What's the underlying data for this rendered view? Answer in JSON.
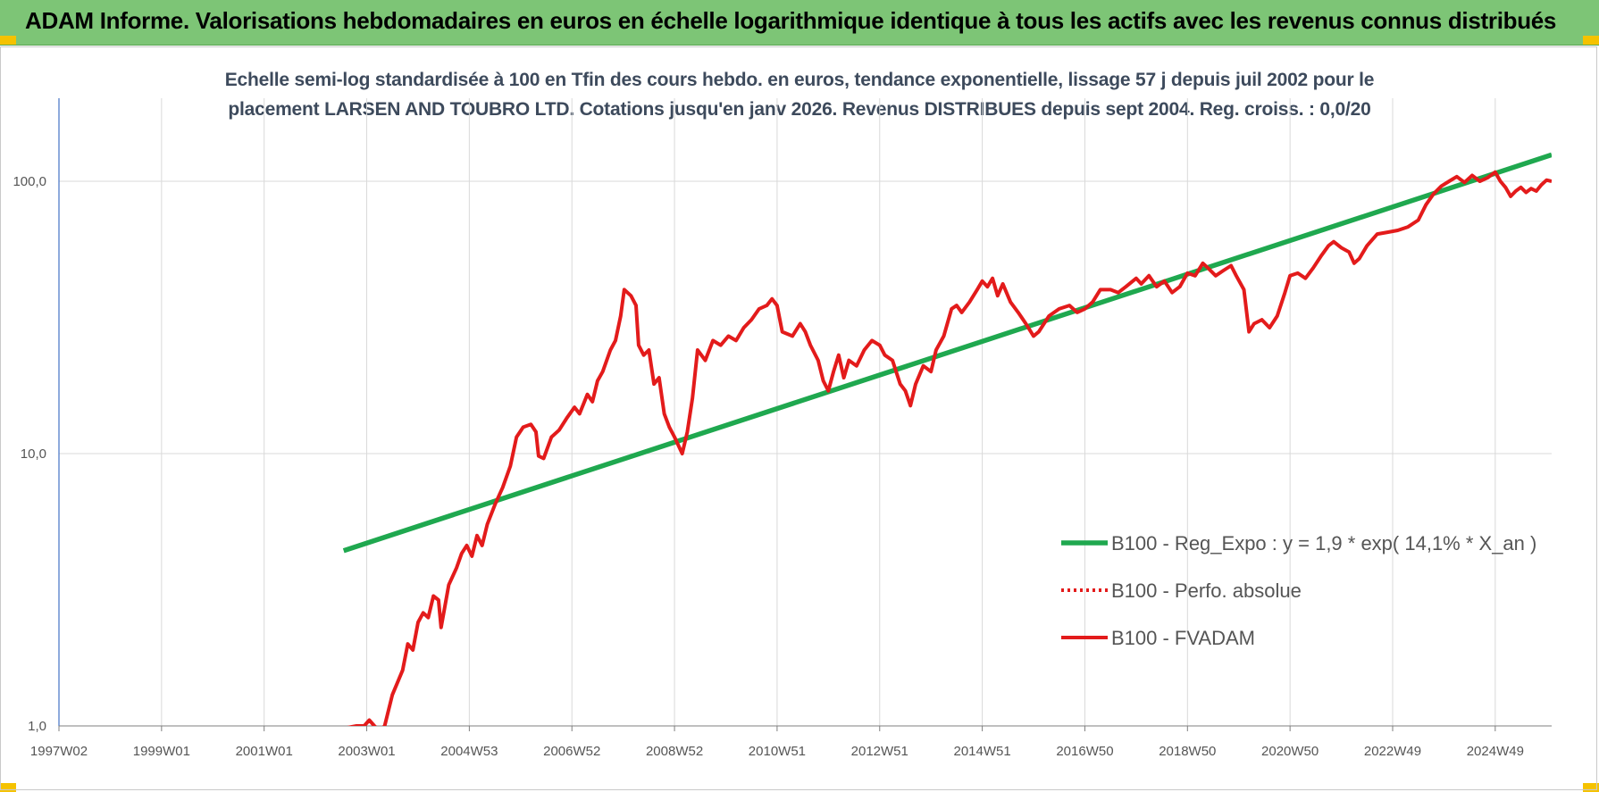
{
  "header": {
    "title": "ADAM Informe. Valorisations hebdomadaires en euros en échelle logarithmique identique à tous les actifs avec les revenus connus distribués",
    "accent_color": "#7dc576"
  },
  "chart_data": {
    "type": "line",
    "title_line1": "Echelle semi-log standardisée à 100 en Tfin des cours hebdo. en euros, tendance exponentielle, lissage 57 j depuis juil 2002 pour le",
    "title_line2": "placement LARSEN AND TOUBRO LTD. Cotations jusqu'en janv 2026. Revenus DISTRIBUES depuis sept 2004. Reg. croiss. : 0,0/20",
    "y_scale": "log",
    "ylim": [
      1,
      200
    ],
    "y_ticks": [
      {
        "value": 1,
        "label": "1,0"
      },
      {
        "value": 10,
        "label": "10,0"
      },
      {
        "value": 100,
        "label": "100,0"
      }
    ],
    "x_range": [
      1997.0,
      2026.1
    ],
    "x_ticks": [
      {
        "year": 1997.0,
        "label": "1997W02"
      },
      {
        "year": 1999.0,
        "label": "1999W01"
      },
      {
        "year": 2001.0,
        "label": "2001W01"
      },
      {
        "year": 2003.0,
        "label": "2003W01"
      },
      {
        "year": 2005.0,
        "label": "2004W53"
      },
      {
        "year": 2007.0,
        "label": "2006W52"
      },
      {
        "year": 2009.0,
        "label": "2008W52"
      },
      {
        "year": 2011.0,
        "label": "2010W51"
      },
      {
        "year": 2013.0,
        "label": "2012W51"
      },
      {
        "year": 2015.0,
        "label": "2014W51"
      },
      {
        "year": 2017.0,
        "label": "2016W50"
      },
      {
        "year": 2019.0,
        "label": "2018W50"
      },
      {
        "year": 2021.0,
        "label": "2020W50"
      },
      {
        "year": 2023.0,
        "label": "2022W49"
      },
      {
        "year": 2025.0,
        "label": "2024W49"
      }
    ],
    "grid": true,
    "legend_position": "bottom-right",
    "series": [
      {
        "name": "B100 - Reg_Expo : y = 1,9 * exp( 14,1% *  X_an )",
        "color": "#1fa84f",
        "style": "solid",
        "points": [
          [
            2002.55,
            4.4
          ],
          [
            2026.1,
            125
          ]
        ]
      },
      {
        "name": "B100 - Perfo. absolue",
        "color": "#e31b1b",
        "style": "dotted",
        "points": []
      },
      {
        "name": "B100 - FVADAM",
        "color": "#e31b1b",
        "style": "solid",
        "points": [
          [
            2002.55,
            0.98
          ],
          [
            2002.8,
            1.0
          ],
          [
            2002.95,
            1.0
          ],
          [
            2003.05,
            1.05
          ],
          [
            2003.15,
            1.0
          ],
          [
            2003.25,
            0.96
          ],
          [
            2003.35,
            1.0
          ],
          [
            2003.5,
            1.3
          ],
          [
            2003.7,
            1.6
          ],
          [
            2003.8,
            2.0
          ],
          [
            2003.9,
            1.9
          ],
          [
            2004.0,
            2.4
          ],
          [
            2004.1,
            2.6
          ],
          [
            2004.2,
            2.5
          ],
          [
            2004.3,
            3.0
          ],
          [
            2004.4,
            2.9
          ],
          [
            2004.45,
            2.3
          ],
          [
            2004.6,
            3.3
          ],
          [
            2004.75,
            3.8
          ],
          [
            2004.85,
            4.3
          ],
          [
            2004.95,
            4.6
          ],
          [
            2005.05,
            4.2
          ],
          [
            2005.15,
            5.0
          ],
          [
            2005.25,
            4.6
          ],
          [
            2005.35,
            5.5
          ],
          [
            2005.5,
            6.5
          ],
          [
            2005.65,
            7.5
          ],
          [
            2005.8,
            9.0
          ],
          [
            2005.92,
            11.5
          ],
          [
            2006.05,
            12.5
          ],
          [
            2006.2,
            12.8
          ],
          [
            2006.3,
            12.0
          ],
          [
            2006.35,
            9.8
          ],
          [
            2006.45,
            9.6
          ],
          [
            2006.6,
            11.5
          ],
          [
            2006.75,
            12.2
          ],
          [
            2006.9,
            13.5
          ],
          [
            2007.05,
            14.8
          ],
          [
            2007.15,
            14.0
          ],
          [
            2007.3,
            16.5
          ],
          [
            2007.4,
            15.5
          ],
          [
            2007.5,
            18.5
          ],
          [
            2007.6,
            20.0
          ],
          [
            2007.75,
            24.0
          ],
          [
            2007.85,
            26.0
          ],
          [
            2007.95,
            32.0
          ],
          [
            2008.02,
            40.0
          ],
          [
            2008.15,
            38.0
          ],
          [
            2008.25,
            35.0
          ],
          [
            2008.3,
            25.0
          ],
          [
            2008.4,
            23.0
          ],
          [
            2008.5,
            24.0
          ],
          [
            2008.6,
            18.0
          ],
          [
            2008.7,
            19.0
          ],
          [
            2008.8,
            14.0
          ],
          [
            2008.9,
            12.5
          ],
          [
            2009.0,
            11.5
          ],
          [
            2009.15,
            10.0
          ],
          [
            2009.25,
            12.0
          ],
          [
            2009.35,
            16.0
          ],
          [
            2009.45,
            24.0
          ],
          [
            2009.6,
            22.0
          ],
          [
            2009.75,
            26.0
          ],
          [
            2009.9,
            25.0
          ],
          [
            2010.05,
            27.0
          ],
          [
            2010.2,
            26.0
          ],
          [
            2010.35,
            29.0
          ],
          [
            2010.5,
            31.0
          ],
          [
            2010.65,
            34.0
          ],
          [
            2010.8,
            35.0
          ],
          [
            2010.9,
            37.0
          ],
          [
            2011.0,
            35.0
          ],
          [
            2011.1,
            28.0
          ],
          [
            2011.3,
            27.0
          ],
          [
            2011.45,
            30.0
          ],
          [
            2011.55,
            28.0
          ],
          [
            2011.65,
            25.0
          ],
          [
            2011.8,
            22.0
          ],
          [
            2011.9,
            18.5
          ],
          [
            2012.0,
            17.0
          ],
          [
            2012.1,
            20.0
          ],
          [
            2012.2,
            23.0
          ],
          [
            2012.3,
            19.0
          ],
          [
            2012.4,
            22.0
          ],
          [
            2012.55,
            21.0
          ],
          [
            2012.7,
            24.0
          ],
          [
            2012.85,
            26.0
          ],
          [
            2013.0,
            25.0
          ],
          [
            2013.1,
            23.0
          ],
          [
            2013.25,
            22.0
          ],
          [
            2013.4,
            18.0
          ],
          [
            2013.5,
            17.0
          ],
          [
            2013.6,
            15.0
          ],
          [
            2013.7,
            18.0
          ],
          [
            2013.85,
            21.0
          ],
          [
            2014.0,
            20.0
          ],
          [
            2014.1,
            24.0
          ],
          [
            2014.25,
            27.0
          ],
          [
            2014.4,
            34.0
          ],
          [
            2014.5,
            35.0
          ],
          [
            2014.6,
            33.0
          ],
          [
            2014.75,
            36.0
          ],
          [
            2014.9,
            40.0
          ],
          [
            2015.0,
            43.0
          ],
          [
            2015.1,
            41.0
          ],
          [
            2015.2,
            44.0
          ],
          [
            2015.3,
            38.0
          ],
          [
            2015.4,
            42.0
          ],
          [
            2015.55,
            36.0
          ],
          [
            2015.7,
            33.0
          ],
          [
            2015.85,
            30.0
          ],
          [
            2016.0,
            27.0
          ],
          [
            2016.1,
            28.0
          ],
          [
            2016.3,
            32.0
          ],
          [
            2016.5,
            34.0
          ],
          [
            2016.7,
            35.0
          ],
          [
            2016.85,
            33.0
          ],
          [
            2017.0,
            34.0
          ],
          [
            2017.15,
            36.0
          ],
          [
            2017.3,
            40.0
          ],
          [
            2017.5,
            40.0
          ],
          [
            2017.65,
            39.0
          ],
          [
            2017.8,
            41.0
          ],
          [
            2018.0,
            44.0
          ],
          [
            2018.1,
            42.0
          ],
          [
            2018.25,
            45.0
          ],
          [
            2018.4,
            41.0
          ],
          [
            2018.55,
            43.0
          ],
          [
            2018.7,
            39.0
          ],
          [
            2018.85,
            41.0
          ],
          [
            2019.0,
            46.0
          ],
          [
            2019.15,
            45.0
          ],
          [
            2019.3,
            50.0
          ],
          [
            2019.4,
            48.0
          ],
          [
            2019.55,
            45.0
          ],
          [
            2019.7,
            47.0
          ],
          [
            2019.85,
            49.0
          ],
          [
            2019.95,
            45.0
          ],
          [
            2020.1,
            40.0
          ],
          [
            2020.2,
            28.0
          ],
          [
            2020.3,
            30.0
          ],
          [
            2020.45,
            31.0
          ],
          [
            2020.6,
            29.0
          ],
          [
            2020.75,
            32.0
          ],
          [
            2020.9,
            39.0
          ],
          [
            2021.0,
            45.0
          ],
          [
            2021.15,
            46.0
          ],
          [
            2021.3,
            44.0
          ],
          [
            2021.45,
            48.0
          ],
          [
            2021.6,
            53.0
          ],
          [
            2021.75,
            58.0
          ],
          [
            2021.85,
            60.0
          ],
          [
            2022.0,
            57.0
          ],
          [
            2022.15,
            55.0
          ],
          [
            2022.25,
            50.0
          ],
          [
            2022.35,
            52.0
          ],
          [
            2022.5,
            58.0
          ],
          [
            2022.7,
            64.0
          ],
          [
            2022.9,
            65.0
          ],
          [
            2023.1,
            66.0
          ],
          [
            2023.3,
            68.0
          ],
          [
            2023.5,
            72.0
          ],
          [
            2023.65,
            82.0
          ],
          [
            2023.8,
            90.0
          ],
          [
            2023.95,
            96.0
          ],
          [
            2024.1,
            100.0
          ],
          [
            2024.25,
            104.0
          ],
          [
            2024.4,
            99.0
          ],
          [
            2024.55,
            105.0
          ],
          [
            2024.7,
            100.0
          ],
          [
            2024.85,
            103.0
          ],
          [
            2025.0,
            108.0
          ],
          [
            2025.1,
            100.0
          ],
          [
            2025.2,
            95.0
          ],
          [
            2025.3,
            88.0
          ],
          [
            2025.4,
            92.0
          ],
          [
            2025.5,
            95.0
          ],
          [
            2025.6,
            91.0
          ],
          [
            2025.7,
            94.0
          ],
          [
            2025.8,
            92.0
          ],
          [
            2025.9,
            97.0
          ],
          [
            2026.0,
            101.0
          ],
          [
            2026.1,
            100.0
          ]
        ]
      }
    ]
  }
}
